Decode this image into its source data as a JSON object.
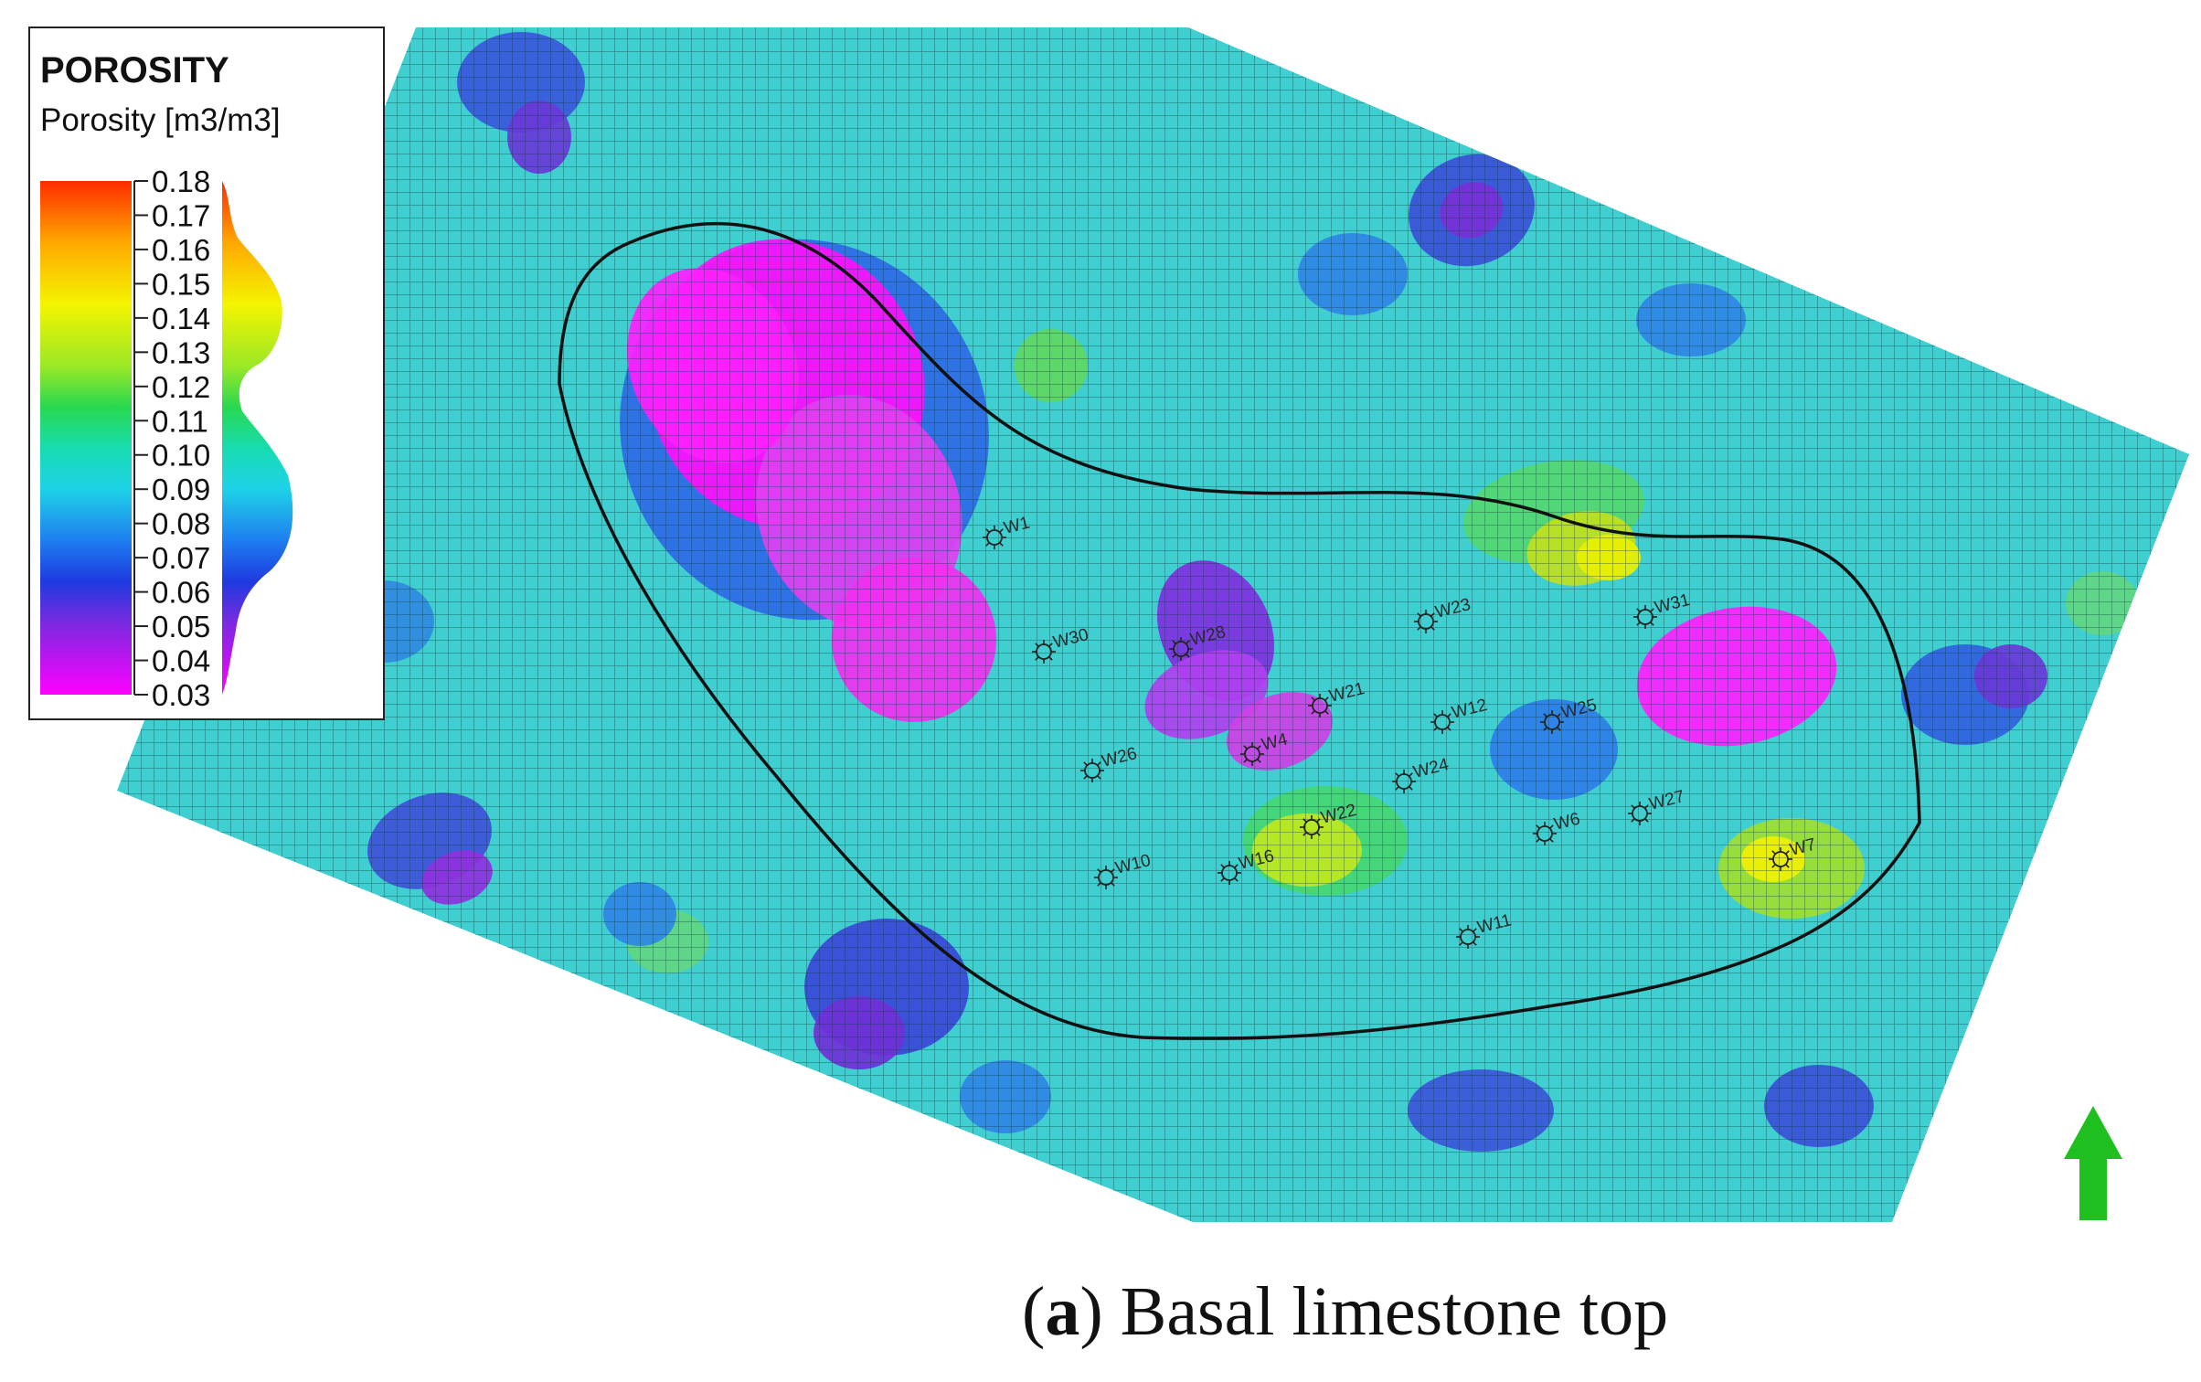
{
  "legend": {
    "title": "POROSITY",
    "subtitle": "Porosity [m3/m3]",
    "ticks": [
      "0.18",
      "0.17",
      "0.16",
      "0.15",
      "0.14",
      "0.13",
      "0.12",
      "0.11",
      "0.10",
      "0.09",
      "0.08",
      "0.07",
      "0.06",
      "0.05",
      "0.04",
      "0.03"
    ],
    "range": [
      0.03,
      0.18
    ],
    "colormap": [
      "#ff00ff",
      "#8a2be2",
      "#2222dd",
      "#1e6ef0",
      "#1ec8e6",
      "#16e0b0",
      "#28d850",
      "#a8e820",
      "#f0f000",
      "#ffb000",
      "#ff3000"
    ]
  },
  "wells": [
    {
      "label": "W1"
    },
    {
      "label": "W30"
    },
    {
      "label": "W28"
    },
    {
      "label": "W23"
    },
    {
      "label": "W31"
    },
    {
      "label": "W21"
    },
    {
      "label": "W12"
    },
    {
      "label": "W25"
    },
    {
      "label": "W4"
    },
    {
      "label": "W26"
    },
    {
      "label": "W24"
    },
    {
      "label": "W22"
    },
    {
      "label": "W6"
    },
    {
      "label": "W27"
    },
    {
      "label": "W10"
    },
    {
      "label": "W16"
    },
    {
      "label": "W7"
    },
    {
      "label": "W11"
    }
  ],
  "north_arrow": {
    "color": "#1fbf1f"
  },
  "caption": {
    "letter": "a",
    "text": "Basal limestone top"
  }
}
